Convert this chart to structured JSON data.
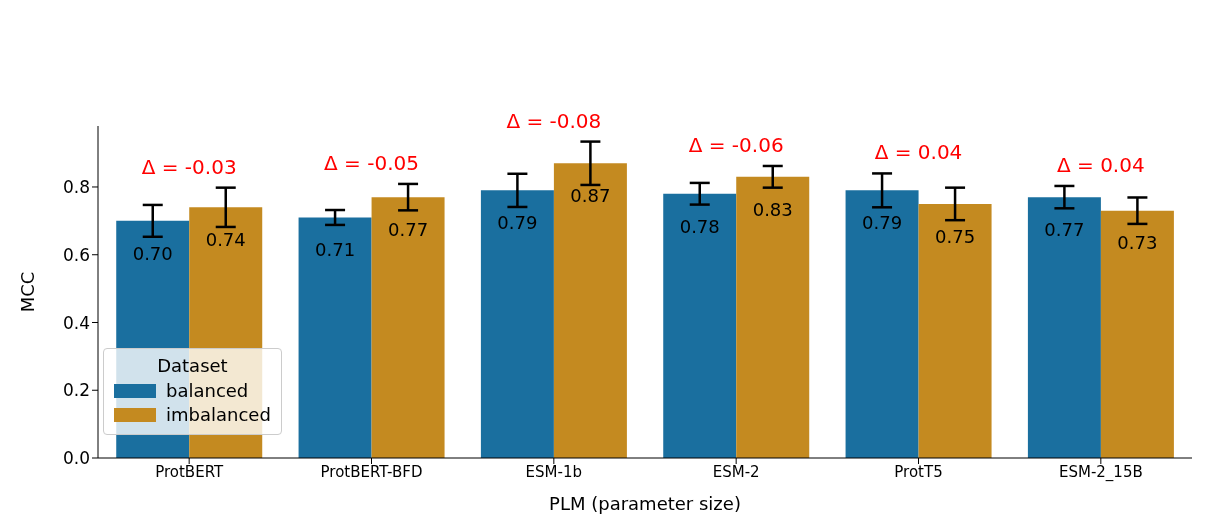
{
  "chart_data": {
    "type": "bar",
    "xlabel": "PLM (parameter size)",
    "ylabel": "MCC",
    "legend_title": "Dataset",
    "legend": "bottom left",
    "categories": [
      "ProtBERT",
      "ProtBERT-BFD",
      "ESM-1b",
      "ESM-2",
      "ProtT5",
      "ESM-2_15B"
    ],
    "series": [
      {
        "name": "balanced",
        "color": "#1a6f9f",
        "values": [
          0.7,
          0.71,
          0.79,
          0.78,
          0.79,
          0.77
        ],
        "value_labels": [
          "0.70",
          "0.71",
          "0.79",
          "0.78",
          "0.79",
          "0.77"
        ],
        "errors": [
          0.047,
          0.022,
          0.049,
          0.032,
          0.05,
          0.033
        ]
      },
      {
        "name": "imbalanced",
        "color": "#c48a20",
        "values": [
          0.74,
          0.77,
          0.87,
          0.83,
          0.75,
          0.73
        ],
        "value_labels": [
          "0.74",
          "0.77",
          "0.87",
          "0.83",
          "0.75",
          "0.73"
        ],
        "errors": [
          0.058,
          0.039,
          0.064,
          0.032,
          0.048,
          0.039
        ]
      }
    ],
    "ylim": [
      0,
      0.98
    ],
    "yticks": [
      {
        "value": 0,
        "label": "0.0"
      },
      0.2,
      0.4,
      0.6,
      0.8
    ],
    "annotations": [
      "Δ = -0.03",
      "Δ = -0.05",
      "Δ = -0.08",
      "Δ = -0.06",
      "Δ = 0.04",
      "Δ = 0.04"
    ]
  }
}
